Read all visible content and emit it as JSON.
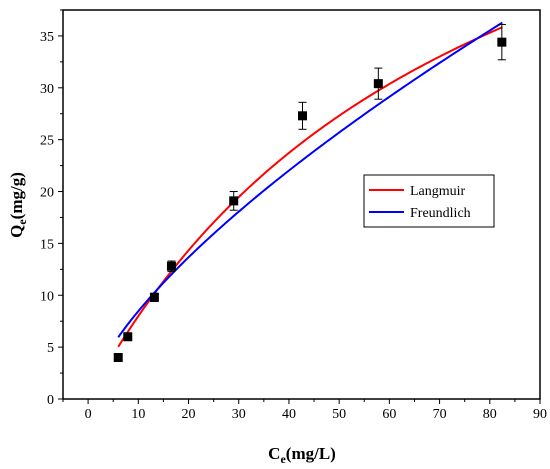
{
  "chart_data": {
    "type": "scatter",
    "xlabel": "C",
    "xlabel_sub": "e",
    "xlabel_unit": "(mg/L)",
    "ylabel": "Q",
    "ylabel_sub": "e",
    "ylabel_unit": "(mg/g)",
    "xlim": [
      -5,
      90
    ],
    "ylim": [
      0,
      37.5
    ],
    "xticks": [
      0,
      10,
      20,
      30,
      40,
      50,
      60,
      70,
      80,
      90
    ],
    "yticks": [
      0,
      5,
      10,
      15,
      20,
      25,
      30,
      35
    ],
    "points": [
      {
        "x": 6.0,
        "y": 4.0,
        "err": 0.0
      },
      {
        "x": 7.9,
        "y": 6.0,
        "err": 0.0
      },
      {
        "x": 13.2,
        "y": 9.8,
        "err": 0.4
      },
      {
        "x": 16.6,
        "y": 12.8,
        "err": 0.5
      },
      {
        "x": 29.0,
        "y": 19.1,
        "err": 0.9
      },
      {
        "x": 42.7,
        "y": 27.3,
        "err": 1.3
      },
      {
        "x": 57.8,
        "y": 30.4,
        "err": 1.5
      },
      {
        "x": 82.4,
        "y": 34.4,
        "err": 1.7
      }
    ],
    "series": [
      {
        "name": "Langmuir",
        "color": "#ff0000",
        "model": "langmuir",
        "qmax": 69.0,
        "kl": 0.0131,
        "x_range": [
          6,
          82.5
        ]
      },
      {
        "name": "Freundlich",
        "color": "#0000ff",
        "model": "freundlich",
        "kf": 1.73,
        "n": 1.45,
        "x_range": [
          6,
          82.5
        ]
      }
    ],
    "legend_position": "right",
    "grid": false
  }
}
